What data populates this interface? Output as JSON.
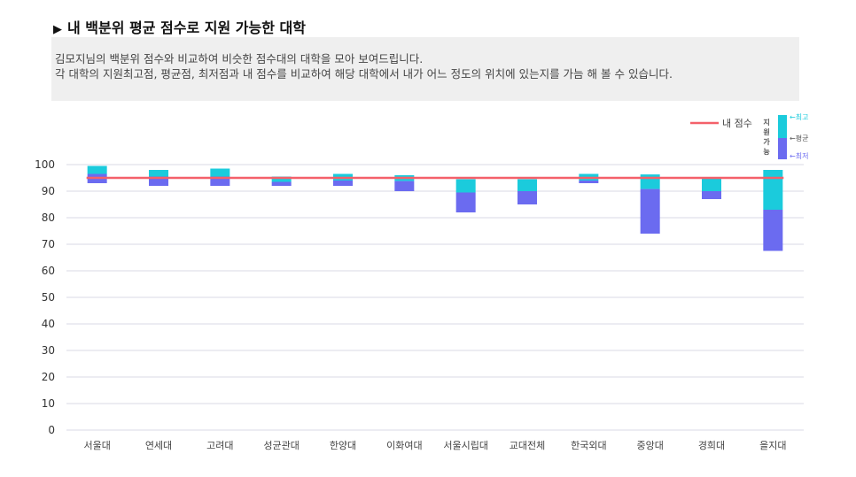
{
  "page": {
    "title": "내 백분위 평균 점수로 지원 가능한 대학",
    "desc_line1": "김모지님의 백분위 점수와 비교하여 비슷한 점수대의 대학을 모아 보여드립니다.",
    "desc_line2": "각 대학의 지원최고점, 평균점, 최저점과 내 점수를 비교하여 해당 대학에서 내가 어느 정도의 위치에 있는지를 가늠 해 볼 수 있습니다."
  },
  "legend": {
    "my_score_label": "내 점수",
    "range_label_chars": [
      "지",
      "원",
      "가",
      "능"
    ],
    "max_label": "←최고",
    "avg_label": "←평균",
    "min_label": "←최저"
  },
  "colors": {
    "upper": "#1bcbdc",
    "lower": "#6b6bf0",
    "my_score_line": "#f4606a",
    "grid": "#d9d9e6"
  },
  "chart_data": {
    "type": "bar",
    "subtype": "floating-range",
    "categories": [
      "서울대",
      "연세대",
      "고려대",
      "성균관대",
      "한양대",
      "이화여대",
      "서울시립대",
      "교대전체",
      "한국외대",
      "중앙대",
      "경희대",
      "을지대"
    ],
    "max": [
      99.5,
      98,
      98.5,
      95.5,
      96.5,
      96,
      94.5,
      94.5,
      96.5,
      96.3,
      95,
      98
    ],
    "avg": [
      96.5,
      95.5,
      95.5,
      93.5,
      94,
      93.8,
      89.5,
      90,
      94,
      90.8,
      90,
      83
    ],
    "min": [
      93,
      92,
      92,
      92,
      92,
      90,
      82,
      85,
      93,
      74,
      87,
      67.5
    ],
    "my_score": 95,
    "ylim": [
      0,
      100
    ],
    "yticks": [
      0,
      10,
      20,
      30,
      40,
      50,
      60,
      70,
      80,
      90,
      100
    ],
    "grid": true,
    "legend_position": "top-right"
  }
}
